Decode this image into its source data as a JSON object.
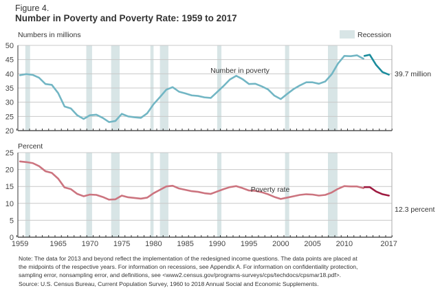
{
  "figure_label": "Figure 4.",
  "title": "Number in Poverty and Poverty Rate: 1959 to 2017",
  "legend": {
    "recession_label": "Recession"
  },
  "colors": {
    "title": "#1d9aa8",
    "number_old": "#72b6c4",
    "number_new": "#1b8c9c",
    "rate_old": "#cc747f",
    "rate_new": "#9e1a40",
    "recession": "#d8e5e6",
    "grid": "#c8c8c8"
  },
  "recessions": [
    [
      1960.33,
      1961.08
    ],
    [
      1969.92,
      1970.83
    ],
    [
      1973.83,
      1975.17
    ],
    [
      1980.0,
      1980.5
    ],
    [
      1981.5,
      1982.83
    ],
    [
      1990.5,
      1991.17
    ],
    [
      2001.17,
      2001.83
    ],
    [
      2007.92,
      2009.42
    ]
  ],
  "x_ticks": [
    "1959",
    "1965",
    "1970",
    "1975",
    "1980",
    "1985",
    "1990",
    "1995",
    "2000",
    "2005",
    "2010",
    "2017"
  ],
  "chart_data": [
    {
      "type": "line",
      "ylabel": "Numbers in millions",
      "ylim": [
        20,
        50
      ],
      "yticks": [
        "20",
        "25",
        "30",
        "35",
        "40",
        "45",
        "50"
      ],
      "grid": true,
      "series_label": "Number in poverty",
      "end_label": "39.7 million",
      "series": [
        {
          "x": [
            1959,
            1960,
            1961,
            1962,
            1963,
            1964,
            1965,
            1966,
            1967,
            1968,
            1969,
            1970,
            1971,
            1972,
            1973,
            1974,
            1975,
            1976,
            1977,
            1978,
            1979,
            1980,
            1981,
            1982,
            1983,
            1984,
            1985,
            1986,
            1987,
            1988,
            1989,
            1990,
            1991,
            1992,
            1993,
            1994,
            1995,
            1996,
            1997,
            1998,
            1999,
            2000,
            2001,
            2002,
            2003,
            2004,
            2005,
            2006,
            2007,
            2008,
            2009,
            2010,
            2011,
            2012,
            2013
          ],
          "values": [
            39.5,
            39.9,
            39.6,
            38.6,
            36.4,
            36.1,
            33.2,
            28.5,
            27.8,
            25.4,
            24.1,
            25.4,
            25.6,
            24.5,
            23.0,
            23.4,
            25.9,
            25.0,
            24.7,
            24.5,
            26.1,
            29.3,
            31.8,
            34.4,
            35.3,
            33.7,
            33.1,
            32.4,
            32.2,
            31.7,
            31.5,
            33.6,
            35.7,
            38.0,
            39.3,
            38.1,
            36.4,
            36.5,
            35.6,
            34.5,
            32.3,
            31.1,
            32.9,
            34.6,
            35.9,
            37.0,
            37.0,
            36.5,
            37.3,
            39.8,
            43.6,
            46.3,
            46.2,
            46.5,
            45.3
          ]
        },
        {
          "x": [
            2013,
            2014,
            2015,
            2016,
            2017
          ],
          "values": [
            46.3,
            46.7,
            43.1,
            40.6,
            39.7
          ]
        }
      ]
    },
    {
      "type": "line",
      "ylabel": "Percent",
      "ylim": [
        0,
        25
      ],
      "yticks": [
        "0",
        "5",
        "10",
        "15",
        "20",
        "25"
      ],
      "grid": true,
      "series_label": "Poverty rate",
      "end_label": "12.3 percent",
      "series": [
        {
          "x": [
            1959,
            1960,
            1961,
            1962,
            1963,
            1964,
            1965,
            1966,
            1967,
            1968,
            1969,
            1970,
            1971,
            1972,
            1973,
            1974,
            1975,
            1976,
            1977,
            1978,
            1979,
            1980,
            1981,
            1982,
            1983,
            1984,
            1985,
            1986,
            1987,
            1988,
            1989,
            1990,
            1991,
            1992,
            1993,
            1994,
            1995,
            1996,
            1997,
            1998,
            1999,
            2000,
            2001,
            2002,
            2003,
            2004,
            2005,
            2006,
            2007,
            2008,
            2009,
            2010,
            2011,
            2012,
            2013
          ],
          "values": [
            22.4,
            22.2,
            21.9,
            21.0,
            19.5,
            19.0,
            17.3,
            14.7,
            14.2,
            12.8,
            12.1,
            12.6,
            12.5,
            11.9,
            11.1,
            11.2,
            12.3,
            11.8,
            11.6,
            11.4,
            11.7,
            13.0,
            14.0,
            15.0,
            15.2,
            14.4,
            14.0,
            13.6,
            13.4,
            13.0,
            12.8,
            13.5,
            14.2,
            14.8,
            15.1,
            14.5,
            13.8,
            13.7,
            13.3,
            12.7,
            11.9,
            11.3,
            11.7,
            12.1,
            12.5,
            12.7,
            12.6,
            12.3,
            12.5,
            13.2,
            14.3,
            15.1,
            15.0,
            15.0,
            14.5
          ]
        },
        {
          "x": [
            2013,
            2014,
            2015,
            2016,
            2017
          ],
          "values": [
            14.8,
            14.8,
            13.5,
            12.7,
            12.3
          ]
        }
      ]
    }
  ],
  "notes": [
    "Note: The data for 2013 and beyond reflect the implementation of the redesigned income questions. The data points are placed at",
    "the midpoints of the respective years. For information on recessions, see Appendix A. For information on confidentiality protection,",
    "sampling error, nonsampling error, and definitions, see <www2.census.gov/programs-surveys/cps/techdocs/cpsmar18.pdf>."
  ],
  "source": "Source: U.S. Census Bureau, Current Population Survey, 1960 to 2018 Annual Social and Economic Supplements."
}
